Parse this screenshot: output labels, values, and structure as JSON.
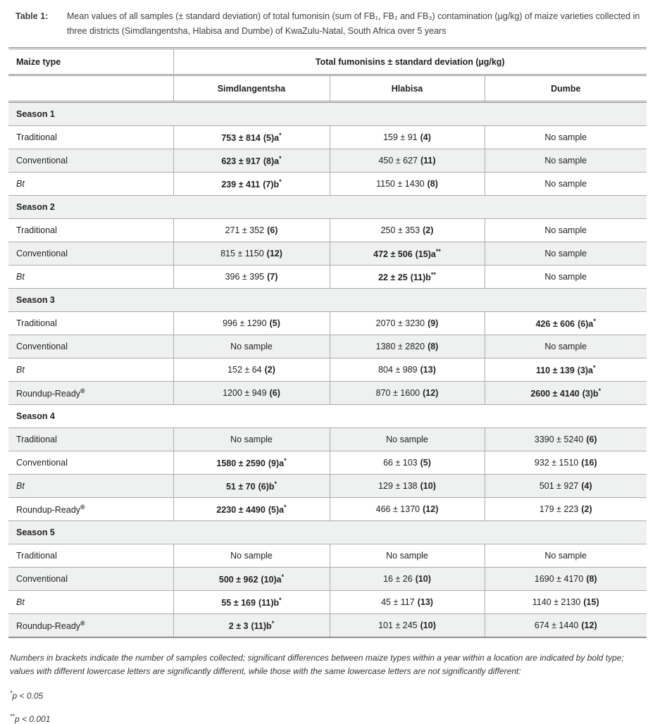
{
  "colors": {
    "stripe_gray": "#eff0f0",
    "grid_line": "#ababab",
    "strong_line": "#8c8c8c",
    "text": "#1f1f1f",
    "caption_text": "#3e3e3e"
  },
  "caption": {
    "label": "Table 1:",
    "text": "Mean values of all samples (± standard deviation) of total fumonisin (sum of FB₁, FB₂ and FB₃) contamination (µg/kg) of maize varieties collected in three districts (Simdlangentsha, Hlabisa and Dumbe) of KwaZulu-Natal, South Africa over 5 years"
  },
  "header": {
    "maize_type": "Maize type",
    "span_title": "Total fumonisins ± standard deviation (µg/kg)",
    "districts": [
      "Simdlangentsha",
      "Hlabisa",
      "Dumbe"
    ]
  },
  "body": {
    "sections": [
      {
        "title": "Season 1",
        "rows": [
          {
            "label": "Traditional",
            "label_sup": "",
            "italic": false,
            "cells": [
              {
                "m": "753 ± 814",
                "t": "(5)a",
                "s": "*",
                "b": true
              },
              {
                "m": "159 ± 91",
                "t": "(4)",
                "s": "",
                "b": false
              },
              {
                "m": "No sample",
                "t": "",
                "s": "",
                "b": false
              }
            ]
          },
          {
            "label": "Conventional",
            "label_sup": "",
            "italic": false,
            "cells": [
              {
                "m": "623 ± 917",
                "t": "(8)a",
                "s": "*",
                "b": true
              },
              {
                "m": "450 ± 627",
                "t": "(11)",
                "s": "",
                "b": false
              },
              {
                "m": "No sample",
                "t": "",
                "s": "",
                "b": false
              }
            ]
          },
          {
            "label": "Bt",
            "label_sup": "",
            "italic": true,
            "cells": [
              {
                "m": "239 ± 411",
                "t": "(7)b",
                "s": "*",
                "b": true
              },
              {
                "m": "1150 ± 1430",
                "t": "(8)",
                "s": "",
                "b": false
              },
              {
                "m": "No sample",
                "t": "",
                "s": "",
                "b": false
              }
            ]
          }
        ]
      },
      {
        "title": "Season 2",
        "rows": [
          {
            "label": "Traditional",
            "label_sup": "",
            "italic": false,
            "cells": [
              {
                "m": "271 ± 352",
                "t": "(6)",
                "s": "",
                "b": false
              },
              {
                "m": "250 ± 353",
                "t": "(2)",
                "s": "",
                "b": false
              },
              {
                "m": "No sample",
                "t": "",
                "s": "",
                "b": false
              }
            ]
          },
          {
            "label": "Conventional",
            "label_sup": "",
            "italic": false,
            "cells": [
              {
                "m": "815 ± 1150",
                "t": "(12)",
                "s": "",
                "b": false
              },
              {
                "m": "472 ± 506",
                "t": "(15)a",
                "s": "**",
                "b": true
              },
              {
                "m": "No sample",
                "t": "",
                "s": "",
                "b": false
              }
            ]
          },
          {
            "label": "Bt",
            "label_sup": "",
            "italic": true,
            "cells": [
              {
                "m": "396 ± 395",
                "t": "(7)",
                "s": "",
                "b": false
              },
              {
                "m": "22 ± 25",
                "t": "(11)b",
                "s": "**",
                "b": true
              },
              {
                "m": "No sample",
                "t": "",
                "s": "",
                "b": false
              }
            ]
          }
        ]
      },
      {
        "title": "Season 3",
        "rows": [
          {
            "label": "Traditional",
            "label_sup": "",
            "italic": false,
            "cells": [
              {
                "m": "996 ± 1290",
                "t": "(5)",
                "s": "",
                "b": false
              },
              {
                "m": "2070 ± 3230",
                "t": "(9)",
                "s": "",
                "b": false
              },
              {
                "m": "426 ± 606",
                "t": "(6)a",
                "s": "*",
                "b": true
              }
            ]
          },
          {
            "label": "Conventional",
            "label_sup": "",
            "italic": false,
            "cells": [
              {
                "m": "No sample",
                "t": "",
                "s": "",
                "b": false
              },
              {
                "m": "1380 ± 2820",
                "t": "(8)",
                "s": "",
                "b": false
              },
              {
                "m": "No sample",
                "t": "",
                "s": "",
                "b": false
              }
            ]
          },
          {
            "label": "Bt",
            "label_sup": "",
            "italic": true,
            "cells": [
              {
                "m": "152 ± 64",
                "t": "(2)",
                "s": "",
                "b": false
              },
              {
                "m": "804 ± 989",
                "t": "(13)",
                "s": "",
                "b": false
              },
              {
                "m": "110 ± 139",
                "t": "(3)a",
                "s": "*",
                "b": true
              }
            ]
          },
          {
            "label": "Roundup-Ready",
            "label_sup": "®",
            "italic": false,
            "cells": [
              {
                "m": "1200 ± 949",
                "t": "(6)",
                "s": "",
                "b": false
              },
              {
                "m": "870 ± 1600",
                "t": "(12)",
                "s": "",
                "b": false
              },
              {
                "m": "2600 ± 4140",
                "t": "(3)b",
                "s": "*",
                "b": true
              }
            ]
          }
        ]
      },
      {
        "title": "Season 4",
        "rows": [
          {
            "label": "Traditional",
            "label_sup": "",
            "italic": false,
            "cells": [
              {
                "m": "No sample",
                "t": "",
                "s": "",
                "b": false
              },
              {
                "m": "No sample",
                "t": "",
                "s": "",
                "b": false
              },
              {
                "m": "3390 ± 5240",
                "t": "(6)",
                "s": "",
                "b": false
              }
            ]
          },
          {
            "label": "Conventional",
            "label_sup": "",
            "italic": false,
            "cells": [
              {
                "m": "1580 ± 2590",
                "t": "(9)a",
                "s": "*",
                "b": true
              },
              {
                "m": "66 ± 103",
                "t": "(5)",
                "s": "",
                "b": false
              },
              {
                "m": "932 ± 1510",
                "t": "(16)",
                "s": "",
                "b": false
              }
            ]
          },
          {
            "label": "Bt",
            "label_sup": "",
            "italic": true,
            "cells": [
              {
                "m": "51 ± 70",
                "t": "(6)b",
                "s": "*",
                "b": true
              },
              {
                "m": "129 ± 138",
                "t": "(10)",
                "s": "",
                "b": false
              },
              {
                "m": "501 ± 927",
                "t": "(4)",
                "s": "",
                "b": false
              }
            ]
          },
          {
            "label": "Roundup-Ready",
            "label_sup": "®",
            "italic": false,
            "cells": [
              {
                "m": "2230 ± 4490",
                "t": "(5)a",
                "s": "*",
                "b": true
              },
              {
                "m": "466 ± 1370",
                "t": "(12)",
                "s": "",
                "b": false
              },
              {
                "m": "179 ± 223",
                "t": "(2)",
                "s": "",
                "b": false
              }
            ]
          }
        ]
      },
      {
        "title": "Season 5",
        "rows": [
          {
            "label": "Traditional",
            "label_sup": "",
            "italic": false,
            "cells": [
              {
                "m": "No sample",
                "t": "",
                "s": "",
                "b": false
              },
              {
                "m": "No sample",
                "t": "",
                "s": "",
                "b": false
              },
              {
                "m": "No sample",
                "t": "",
                "s": "",
                "b": false
              }
            ]
          },
          {
            "label": "Conventional",
            "label_sup": "",
            "italic": false,
            "cells": [
              {
                "m": "500 ± 962",
                "t": "(10)a",
                "s": "*",
                "b": true
              },
              {
                "m": "16 ± 26",
                "t": "(10)",
                "s": "",
                "b": false
              },
              {
                "m": "1690 ± 4170",
                "t": "(8)",
                "s": "",
                "b": false
              }
            ]
          },
          {
            "label": "Bt",
            "label_sup": "",
            "italic": true,
            "cells": [
              {
                "m": "55 ± 169",
                "t": "(11)b",
                "s": "*",
                "b": true
              },
              {
                "m": "45 ± 117",
                "t": "(13)",
                "s": "",
                "b": false
              },
              {
                "m": "1140 ± 2130",
                "t": "(15)",
                "s": "",
                "b": false
              }
            ]
          },
          {
            "label": "Roundup-Ready",
            "label_sup": "®",
            "italic": false,
            "cells": [
              {
                "m": "2 ± 3",
                "t": "(11)b",
                "s": "*",
                "b": true
              },
              {
                "m": "101 ± 245",
                "t": "(10)",
                "s": "",
                "b": false
              },
              {
                "m": "674 ± 1440",
                "t": "(12)",
                "s": "",
                "b": false
              }
            ]
          }
        ]
      }
    ]
  },
  "footnotes": {
    "note": "Numbers in brackets indicate the number of samples collected; significant differences between maize types within a year within a location are indicated by bold type; values with different lowercase letters are significantly different, while those with the same lowercase letters are not significantly different:",
    "p1": {
      "stars": "*",
      "text": "p < 0.05"
    },
    "p2": {
      "stars": "**",
      "text": "p < 0.001"
    }
  }
}
